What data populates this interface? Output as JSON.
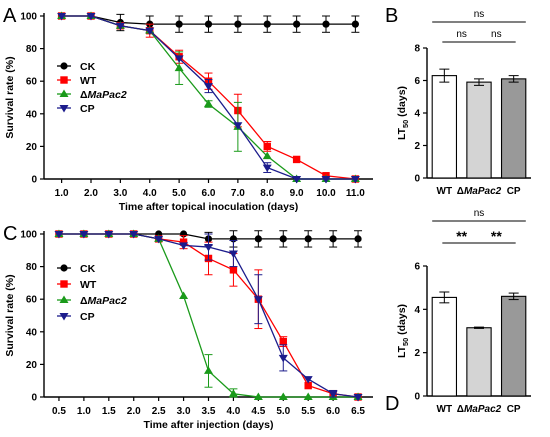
{
  "chart_data": [
    {
      "panel": "A",
      "type": "line",
      "xlabel": "Time after topical inoculation (days)",
      "ylabel": "Survival rate (%)",
      "x": [
        1.0,
        2.0,
        3.0,
        4.0,
        5.0,
        6.0,
        7.0,
        8.0,
        9.0,
        10.0,
        11.0
      ],
      "xticklabels": [
        "1.0",
        "2.0",
        "3.0",
        "4.0",
        "5.0",
        "6.0",
        "7.0",
        "8.0",
        "9.0",
        "10.0",
        "11.0"
      ],
      "ylim": [
        0,
        100
      ],
      "yticks": [
        0,
        20,
        40,
        60,
        80,
        100
      ],
      "legend_position": "left",
      "series": [
        {
          "name": "CK",
          "color": "#000000",
          "marker": "circle",
          "values": [
            100,
            100,
            96,
            95,
            95,
            95,
            95,
            95,
            95,
            95,
            95
          ],
          "errors": [
            0,
            0,
            5,
            5,
            5,
            5,
            5,
            5,
            5,
            5,
            5
          ]
        },
        {
          "name": "WT",
          "color": "#ff0000",
          "marker": "square",
          "values": [
            100,
            100,
            94,
            91,
            75,
            60,
            42,
            20,
            12,
            2,
            0
          ],
          "errors": [
            0,
            0,
            0,
            4,
            4,
            5,
            10,
            3,
            0,
            0,
            0
          ]
        },
        {
          "name": "ΔMaPac2",
          "color": "#1a9a1a",
          "marker": "triangle-up",
          "values": [
            100,
            100,
            94,
            91,
            68,
            46,
            32,
            14,
            0,
            0,
            0
          ],
          "errors": [
            0,
            0,
            0,
            0,
            10,
            2,
            15,
            0,
            0,
            0,
            0
          ]
        },
        {
          "name": "CP",
          "color": "#1c1c8c",
          "marker": "triangle-down",
          "values": [
            100,
            100,
            94,
            91,
            74,
            57,
            33,
            7,
            0,
            0,
            0
          ],
          "errors": [
            0,
            0,
            0,
            0,
            0,
            4,
            0,
            3,
            0,
            0,
            0
          ]
        }
      ]
    },
    {
      "panel": "B",
      "type": "bar",
      "ylabel": "LT50 (days)",
      "categories": [
        "WT",
        "ΔMaPac2",
        "CP"
      ],
      "values": [
        6.3,
        5.9,
        6.1
      ],
      "errors": [
        0.4,
        0.2,
        0.2
      ],
      "colors": [
        "#ffffff",
        "#d4d4d4",
        "#999999"
      ],
      "ylim": [
        0,
        8
      ],
      "yticks": [
        0,
        2,
        4,
        6,
        8
      ],
      "significance": [
        {
          "between": [
            "WT",
            "CP"
          ],
          "label": "ns",
          "level": 1
        },
        {
          "between": [
            "WT",
            "ΔMaPac2"
          ],
          "label": "ns",
          "level": 0
        },
        {
          "between": [
            "ΔMaPac2",
            "CP"
          ],
          "label": "ns",
          "level": 0
        }
      ]
    },
    {
      "panel": "C",
      "type": "line",
      "xlabel": "Time after injection (days)",
      "ylabel": "Survival rate (%)",
      "x": [
        0.5,
        1.0,
        1.5,
        2.0,
        2.5,
        3.0,
        3.5,
        4.0,
        4.5,
        5.0,
        5.5,
        6.0,
        6.5
      ],
      "xticklabels": [
        "0.5",
        "1.0",
        "1.5",
        "2.0",
        "2.5",
        "3.0",
        "3.5",
        "4.0",
        "4.5",
        "5.0",
        "5.5",
        "6.0",
        "6.5"
      ],
      "ylim": [
        0,
        100
      ],
      "yticks": [
        0,
        20,
        40,
        60,
        80,
        100
      ],
      "legend_position": "left",
      "series": [
        {
          "name": "CK",
          "color": "#000000",
          "marker": "circle",
          "values": [
            100,
            100,
            100,
            100,
            100,
            100,
            97,
            97,
            97,
            97,
            97,
            97,
            97
          ],
          "errors": [
            0,
            0,
            0,
            0,
            0,
            0,
            4,
            5,
            5,
            5,
            5,
            5,
            5
          ]
        },
        {
          "name": "WT",
          "color": "#ff0000",
          "marker": "square",
          "values": [
            100,
            100,
            100,
            100,
            97,
            95,
            85,
            78,
            60,
            34,
            7,
            2,
            0
          ],
          "errors": [
            0,
            0,
            0,
            0,
            0,
            4,
            10,
            10,
            18,
            3,
            0,
            2,
            0
          ]
        },
        {
          "name": "ΔMaPac2",
          "color": "#1a9a1a",
          "marker": "triangle-up",
          "values": [
            100,
            100,
            100,
            100,
            97,
            62,
            16,
            2,
            0,
            0,
            0,
            0,
            0
          ],
          "errors": [
            0,
            0,
            0,
            0,
            0,
            0,
            10,
            3,
            0,
            0,
            0,
            0,
            0
          ]
        },
        {
          "name": "CP",
          "color": "#1c1c8c",
          "marker": "triangle-down",
          "values": [
            100,
            100,
            100,
            100,
            97,
            93,
            92,
            88,
            60,
            24,
            11,
            2,
            0
          ],
          "errors": [
            0,
            0,
            0,
            0,
            0,
            0,
            8,
            8,
            15,
            8,
            0,
            2,
            0
          ]
        }
      ]
    },
    {
      "panel": "D",
      "type": "bar",
      "ylabel": "LT50 (days)",
      "categories": [
        "WT",
        "ΔMaPac2",
        "CP"
      ],
      "values": [
        4.55,
        3.15,
        4.6
      ],
      "errors": [
        0.25,
        0.03,
        0.15
      ],
      "colors": [
        "#ffffff",
        "#d4d4d4",
        "#999999"
      ],
      "ylim": [
        0,
        6
      ],
      "yticks": [
        0,
        2,
        4,
        6
      ],
      "significance": [
        {
          "between": [
            "WT",
            "CP"
          ],
          "label": "ns",
          "level": 1
        },
        {
          "between": [
            "WT",
            "ΔMaPac2"
          ],
          "label": "**",
          "level": 0
        },
        {
          "between": [
            "ΔMaPac2",
            "CP"
          ],
          "label": "**",
          "level": 0
        }
      ]
    }
  ]
}
